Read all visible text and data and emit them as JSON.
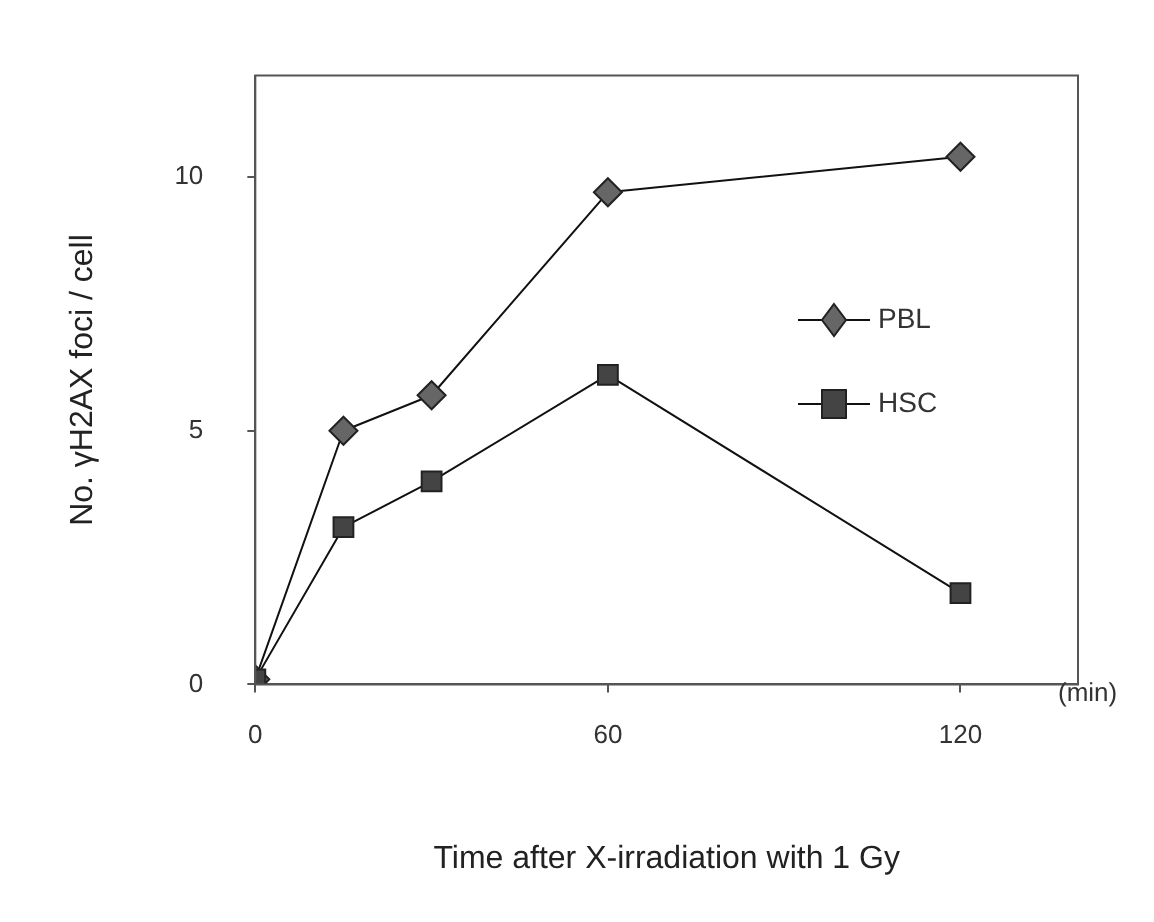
{
  "chart_data": {
    "type": "line",
    "xlabel": "Time after X-irradiation with 1 Gy",
    "ylabel": "No. γH2AX foci / cell",
    "x": [
      0,
      15,
      30,
      60,
      120
    ],
    "xlim": [
      0,
      140
    ],
    "xticks": [
      0,
      60,
      120
    ],
    "ylim": [
      0,
      12
    ],
    "yticks": [
      0,
      5,
      10
    ],
    "grid": false,
    "legend": "right",
    "line_style": "solid",
    "annotations": [
      "(min)"
    ],
    "series": [
      {
        "name": "PBL",
        "color": "#666666",
        "marker": "diamond",
        "values": [
          0.1,
          5.0,
          5.7,
          9.7,
          10.4
        ]
      },
      {
        "name": "HSC",
        "color": "#444444",
        "marker": "square",
        "values": [
          0.1,
          3.1,
          4.0,
          6.1,
          1.8
        ]
      }
    ]
  }
}
